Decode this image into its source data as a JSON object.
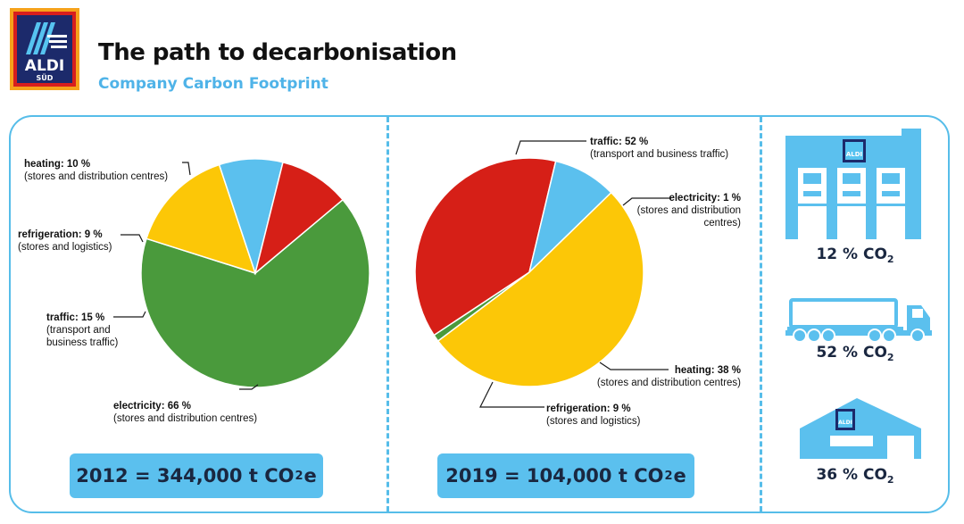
{
  "header": {
    "logo_text": "ALDI",
    "logo_subtext": "SÜD",
    "title": "The path to decarbonisation",
    "subtitle": "Company Carbon Footprint"
  },
  "colors": {
    "green": "#4a9a3c",
    "red": "#d61f17",
    "yellow": "#fcc707",
    "blue": "#5bc0ee",
    "frame": "#56bde9",
    "navy": "#1a2740"
  },
  "chart_data": [
    {
      "type": "pie",
      "year": "2012",
      "total_label": "2012 = 344,000 t CO",
      "total_sub": "2",
      "total_suffix": "e",
      "slices": [
        {
          "name": "electricity",
          "value": 66,
          "color": "#4a9a3c",
          "label": "electricity: 66 %",
          "detail": "(stores and distribution centres)"
        },
        {
          "name": "traffic",
          "value": 15,
          "color": "#fcc707",
          "label": "traffic: 15 %",
          "detail": "(transport and business traffic)"
        },
        {
          "name": "refrigeration",
          "value": 9,
          "color": "#5bc0ee",
          "label": "refrigeration: 9 %",
          "detail": "(stores and logistics)"
        },
        {
          "name": "heating",
          "value": 10,
          "color": "#d61f17",
          "label": "heating: 10 %",
          "detail": "(stores and distribution centres)"
        }
      ]
    },
    {
      "type": "pie",
      "year": "2019",
      "total_label": "2019 = 104,000 t CO",
      "total_sub": "2",
      "total_suffix": "e",
      "slices": [
        {
          "name": "electricity",
          "value": 1,
          "color": "#4a9a3c",
          "label": "electricity: 1 %",
          "detail": "(stores and distribution centres)"
        },
        {
          "name": "heating",
          "value": 38,
          "color": "#d61f17",
          "label": "heating: 38 %",
          "detail": "(stores and distribution centres)"
        },
        {
          "name": "refrigeration",
          "value": 9,
          "color": "#5bc0ee",
          "label": "refrigeration: 9 %",
          "detail": "(stores and logistics)"
        },
        {
          "name": "traffic",
          "value": 52,
          "color": "#fcc707",
          "label": "traffic: 52 %",
          "detail": "(transport and business traffic)"
        }
      ]
    }
  ],
  "shares": [
    {
      "icon": "distribution-centre-icon",
      "label": "12 % CO",
      "sub": "2"
    },
    {
      "icon": "truck-icon",
      "label": "52 % CO",
      "sub": "2"
    },
    {
      "icon": "store-icon",
      "label": "36 % CO",
      "sub": "2"
    }
  ]
}
